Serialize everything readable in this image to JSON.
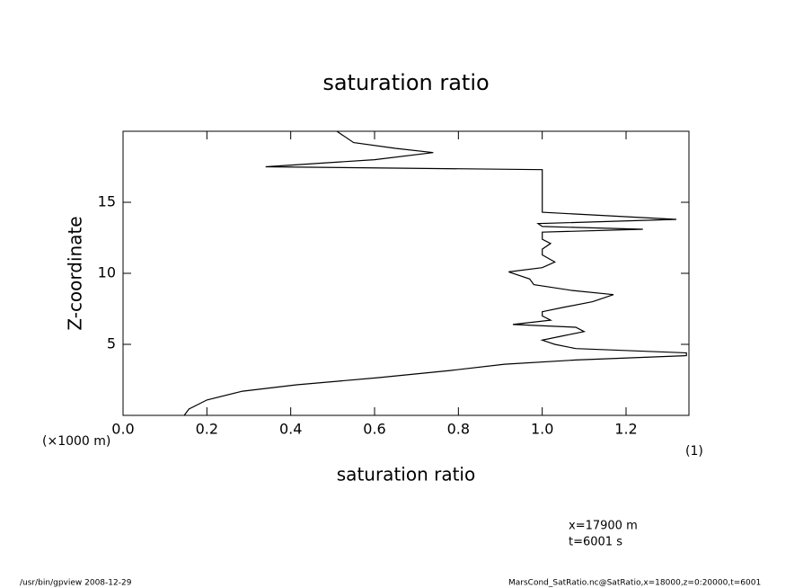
{
  "chart_data": {
    "type": "line",
    "title": "saturation ratio",
    "x_label": "saturation ratio",
    "y_label": "Z-coordinate",
    "y_unit": "(×1000 m)",
    "x_unit": "(1)",
    "annotations": [
      "x=17900 m",
      "t=6001 s"
    ],
    "footer_left": "/usr/bin/gpview  2008-12-29",
    "footer_right": "MarsCond_SatRatio.nc@SatRatio,x=18000,z=0:20000,t=6001",
    "xlim": [
      0,
      1.35
    ],
    "ylim": [
      0,
      20
    ],
    "xticks": [
      {
        "value": 0,
        "label": "0.0"
      },
      0.2,
      0.4,
      0.6,
      0.8,
      {
        "value": 1,
        "label": "1.0"
      },
      1.2
    ],
    "yticks": [
      5,
      10,
      15
    ],
    "y": [
      0,
      0.44,
      1.08,
      1.7,
      2.15,
      2.66,
      3.16,
      3.6,
      3.9,
      4.2,
      4.4,
      4.7,
      5.0,
      5.3,
      5.6,
      5.9,
      6.2,
      6.4,
      6.7,
      7.0,
      7.3,
      7.6,
      8.0,
      8.5,
      8.8,
      9.2,
      9.6,
      10.1,
      10.4,
      10.8,
      11.3,
      11.7,
      12.1,
      12.4,
      12.9,
      13.1,
      13.3,
      13.5,
      13.8,
      14.3,
      17.3,
      17.5,
      18.0,
      18.5,
      18.8,
      19.2,
      20
    ],
    "series": [
      {
        "color": "#000000",
        "values": [
          0.146,
          0.157,
          0.2,
          0.285,
          0.414,
          0.61,
          0.78,
          0.91,
          1.08,
          1.344,
          1.344,
          1.08,
          1.03,
          1.0,
          1.05,
          1.1,
          1.08,
          0.93,
          1.02,
          1.0,
          1.0,
          1.05,
          1.12,
          1.17,
          1.07,
          0.98,
          0.97,
          0.92,
          1.0,
          1.03,
          1.0,
          1.0,
          1.02,
          1.0,
          1.0,
          1.24,
          1.0,
          0.99,
          1.32,
          1.0,
          1.0,
          0.34,
          0.6,
          0.74,
          0.65,
          0.55,
          0.51
        ]
      }
    ]
  }
}
